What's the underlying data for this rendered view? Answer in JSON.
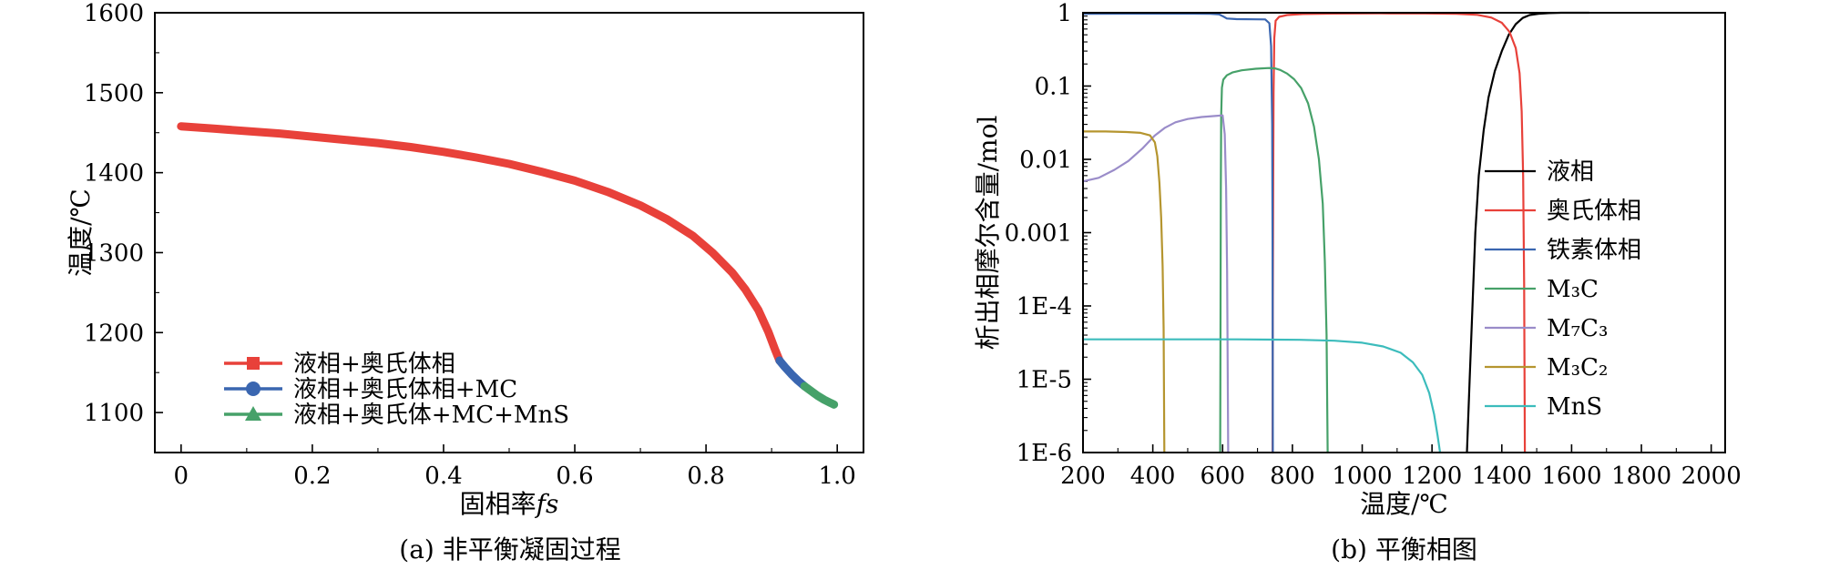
{
  "figure": {
    "background": "#ffffff",
    "captions": {
      "a": "(a) 非平衡凝固过程",
      "b": "(b) 平衡相图"
    }
  },
  "chart_data": [
    {
      "id": "a",
      "type": "line",
      "title": "",
      "xlabel": "固相率fs",
      "xlabel_parts": [
        {
          "t": "固相率",
          "italic": false
        },
        {
          "t": "fs",
          "italic": true
        }
      ],
      "ylabel": "温度/℃",
      "xlim": [
        -0.04,
        1.04
      ],
      "ylim": [
        1050,
        1600
      ],
      "xticks": [
        0,
        0.2,
        0.4,
        0.6,
        0.8,
        1.0
      ],
      "xtick_labels": [
        "0",
        "0.2",
        "0.4",
        "0.6",
        "0.8",
        "1.0"
      ],
      "x_minor_step": 0.1,
      "yscale": "linear",
      "yticks": [
        1100,
        1200,
        1300,
        1400,
        1500,
        1600
      ],
      "ytick_labels": [
        "1100",
        "1200",
        "1300",
        "1400",
        "1500",
        "1600"
      ],
      "y_minor_step": 50,
      "grid": false,
      "legend_position": "inside-lower-left",
      "series": [
        {
          "name": "液相+奥氏体相",
          "color": "#e8413a",
          "marker": "square",
          "line_width": 9,
          "points": [
            [
              0,
              1458
            ],
            [
              0.05,
              1455
            ],
            [
              0.1,
              1452
            ],
            [
              0.15,
              1449
            ],
            [
              0.2,
              1445
            ],
            [
              0.25,
              1441
            ],
            [
              0.3,
              1437
            ],
            [
              0.35,
              1432
            ],
            [
              0.4,
              1426
            ],
            [
              0.45,
              1419
            ],
            [
              0.5,
              1411
            ],
            [
              0.55,
              1401
            ],
            [
              0.6,
              1390
            ],
            [
              0.65,
              1376
            ],
            [
              0.7,
              1359
            ],
            [
              0.74,
              1342
            ],
            [
              0.78,
              1321
            ],
            [
              0.81,
              1300
            ],
            [
              0.84,
              1275
            ],
            [
              0.86,
              1254
            ],
            [
              0.88,
              1228
            ],
            [
              0.895,
              1201
            ],
            [
              0.905,
              1179
            ],
            [
              0.912,
              1165
            ]
          ]
        },
        {
          "name": "液相+奥氏体相+MC",
          "color": "#3a66b0",
          "marker": "circle",
          "line_width": 9,
          "points": [
            [
              0.912,
              1165
            ],
            [
              0.92,
              1157
            ],
            [
              0.93,
              1148
            ],
            [
              0.94,
              1140
            ],
            [
              0.95,
              1133
            ]
          ]
        },
        {
          "name": "液相+奥氏体+MC+MnS",
          "color": "#46a169",
          "marker": "triangle",
          "line_width": 9,
          "points": [
            [
              0.95,
              1133
            ],
            [
              0.96,
              1127
            ],
            [
              0.97,
              1121
            ],
            [
              0.98,
              1116
            ],
            [
              0.99,
              1112
            ],
            [
              0.995,
              1110
            ]
          ]
        }
      ]
    },
    {
      "id": "b",
      "type": "line",
      "title": "",
      "xlabel": "温度/℃",
      "ylabel": "析出相摩尔含量/mol",
      "xlim": [
        200,
        2040
      ],
      "xticks": [
        200,
        400,
        600,
        800,
        1000,
        1200,
        1400,
        1600,
        1800,
        2000
      ],
      "xtick_labels": [
        "200",
        "400",
        "600",
        "800",
        "1000",
        "1200",
        "1400",
        "1600",
        "1800",
        "2000"
      ],
      "x_minor_step": 100,
      "yscale": "log",
      "ylim": [
        1e-06,
        1
      ],
      "yticks": [
        1,
        0.1,
        0.01,
        0.001,
        0.0001,
        1e-05,
        1e-06
      ],
      "ytick_labels": [
        "1",
        "0.1",
        "0.01",
        "0.001",
        "1E-4",
        "1E-5",
        "1E-6"
      ],
      "grid": false,
      "legend_position": "inside-right",
      "series": [
        {
          "name": "液相",
          "color": "#000000",
          "line_width": 2.2,
          "points": [
            [
              1300,
              1e-06
            ],
            [
              1308,
              1e-05
            ],
            [
              1316,
              0.0001
            ],
            [
              1324,
              0.001
            ],
            [
              1334,
              0.006
            ],
            [
              1348,
              0.025
            ],
            [
              1362,
              0.07
            ],
            [
              1380,
              0.16
            ],
            [
              1400,
              0.3
            ],
            [
              1420,
              0.5
            ],
            [
              1440,
              0.7
            ],
            [
              1460,
              0.85
            ],
            [
              1480,
              0.93
            ],
            [
              1505,
              0.97
            ],
            [
              1535,
              0.99
            ],
            [
              1570,
              1
            ],
            [
              1650,
              1
            ]
          ]
        },
        {
          "name": "奥氏体相",
          "color": "#e8413a",
          "line_width": 2.2,
          "points": [
            [
              743,
              1e-06
            ],
            [
              744,
              0.0001
            ],
            [
              745,
              0.004
            ],
            [
              746,
              0.08
            ],
            [
              748,
              0.45
            ],
            [
              752,
              0.78
            ],
            [
              762,
              0.88
            ],
            [
              785,
              0.93
            ],
            [
              830,
              0.96
            ],
            [
              920,
              0.975
            ],
            [
              1050,
              0.98
            ],
            [
              1180,
              0.978
            ],
            [
              1270,
              0.965
            ],
            [
              1330,
              0.935
            ],
            [
              1370,
              0.86
            ],
            [
              1400,
              0.73
            ],
            [
              1422,
              0.55
            ],
            [
              1440,
              0.33
            ],
            [
              1451,
              0.15
            ],
            [
              1457,
              0.045
            ],
            [
              1461,
              0.006
            ],
            [
              1464,
              0.0002
            ],
            [
              1466,
              1e-06
            ]
          ]
        },
        {
          "name": "铁素体相",
          "color": "#3a66b0",
          "line_width": 2.2,
          "points": [
            [
              200,
              0.97
            ],
            [
              320,
              0.972
            ],
            [
              440,
              0.973
            ],
            [
              520,
              0.971
            ],
            [
              565,
              0.965
            ],
            [
              590,
              0.95
            ],
            [
              600,
              0.9
            ],
            [
              612,
              0.835
            ],
            [
              640,
              0.818
            ],
            [
              690,
              0.815
            ],
            [
              722,
              0.812
            ],
            [
              734,
              0.72
            ],
            [
              739,
              0.35
            ],
            [
              742,
              0.03
            ],
            [
              743,
              0.0008
            ],
            [
              744,
              1e-06
            ]
          ]
        },
        {
          "name": "M₃C",
          "color": "#46a169",
          "line_width": 2.2,
          "points": [
            [
              593,
              1e-06
            ],
            [
              594,
              0.0001
            ],
            [
              595,
              0.004
            ],
            [
              596,
              0.04
            ],
            [
              598,
              0.095
            ],
            [
              602,
              0.122
            ],
            [
              612,
              0.14
            ],
            [
              628,
              0.153
            ],
            [
              655,
              0.164
            ],
            [
              695,
              0.172
            ],
            [
              733,
              0.176
            ],
            [
              750,
              0.174
            ],
            [
              765,
              0.166
            ],
            [
              785,
              0.148
            ],
            [
              805,
              0.124
            ],
            [
              825,
              0.094
            ],
            [
              845,
              0.058
            ],
            [
              862,
              0.028
            ],
            [
              876,
              0.01
            ],
            [
              887,
              0.0025
            ],
            [
              893,
              0.0004
            ],
            [
              898,
              4e-05
            ],
            [
              901,
              1e-06
            ]
          ]
        },
        {
          "name": "M₇C₃",
          "color": "#9a8cc9",
          "line_width": 2.2,
          "points": [
            [
              200,
              0.005
            ],
            [
              245,
              0.0056
            ],
            [
              290,
              0.0072
            ],
            [
              330,
              0.0095
            ],
            [
              370,
              0.014
            ],
            [
              405,
              0.021
            ],
            [
              435,
              0.027
            ],
            [
              465,
              0.032
            ],
            [
              500,
              0.0355
            ],
            [
              540,
              0.0378
            ],
            [
              578,
              0.039
            ],
            [
              600,
              0.0398
            ],
            [
              606,
              0.022
            ],
            [
              610,
              0.004
            ],
            [
              613,
              0.0003
            ],
            [
              616,
              1e-06
            ]
          ]
        },
        {
          "name": "M₃C₂",
          "color": "#b5952f",
          "line_width": 2.2,
          "points": [
            [
              200,
              0.024
            ],
            [
              265,
              0.024
            ],
            [
              325,
              0.0236
            ],
            [
              365,
              0.023
            ],
            [
              392,
              0.0212
            ],
            [
              406,
              0.017
            ],
            [
              413,
              0.011
            ],
            [
              419,
              0.0048
            ],
            [
              424,
              0.0016
            ],
            [
              428,
              0.00035
            ],
            [
              431,
              5e-05
            ],
            [
              433,
              1e-06
            ]
          ]
        },
        {
          "name": "MnS",
          "color": "#3cbcbc",
          "line_width": 2.2,
          "points": [
            [
              200,
              3.5e-05
            ],
            [
              420,
              3.5e-05
            ],
            [
              640,
              3.5e-05
            ],
            [
              820,
              3.45e-05
            ],
            [
              920,
              3.35e-05
            ],
            [
              1000,
              3.15e-05
            ],
            [
              1060,
              2.8e-05
            ],
            [
              1110,
              2.3e-05
            ],
            [
              1145,
              1.7e-05
            ],
            [
              1172,
              1.15e-05
            ],
            [
              1192,
              6.5e-06
            ],
            [
              1206,
              3.3e-06
            ],
            [
              1216,
              1.7e-06
            ],
            [
              1223,
              1e-06
            ]
          ]
        }
      ]
    }
  ]
}
